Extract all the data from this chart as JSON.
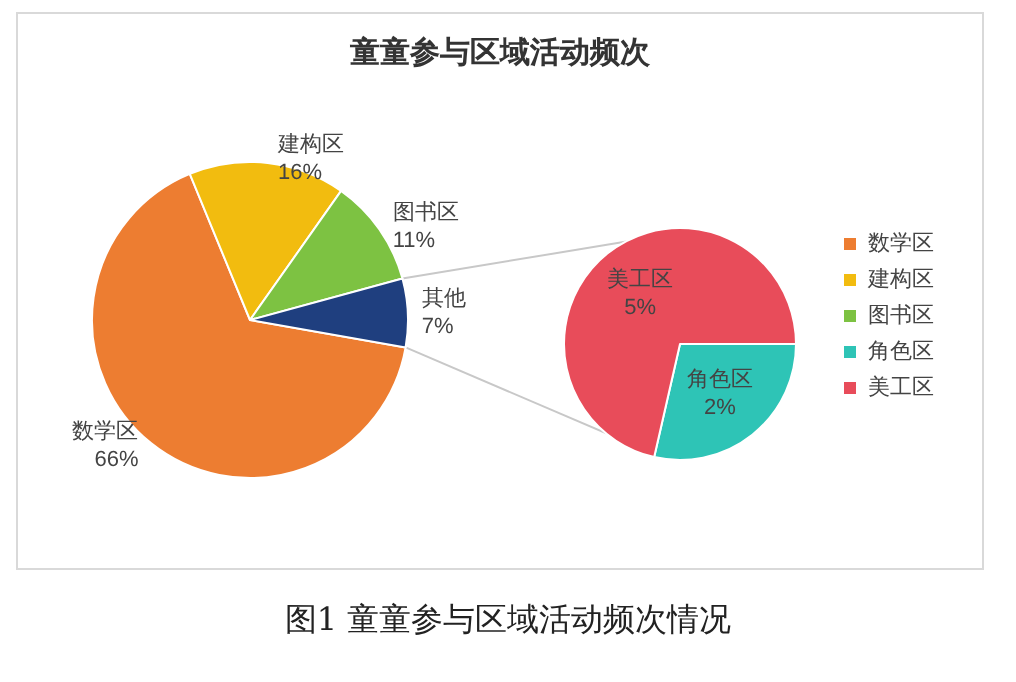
{
  "chart_data": [
    {
      "type": "pie",
      "title": "童童参与区域活动频次",
      "legend": "right",
      "annotations": [
        "图1 童童参与区域活动频次情况"
      ],
      "categories": [
        "数学区",
        "建构区",
        "图书区",
        "其他"
      ],
      "values": [
        66,
        16,
        11,
        7
      ],
      "value_labels": [
        "66%",
        "16%",
        "11%",
        "7%"
      ],
      "colors": [
        "#ed7d31",
        "#f2bc0f",
        "#7dc242",
        "#1f3f7f"
      ]
    },
    {
      "type": "pie",
      "legend": "right",
      "categories": [
        "角色区",
        "美工区"
      ],
      "values": [
        2,
        5
      ],
      "value_labels": [
        "2%",
        "5%"
      ],
      "colors": [
        "#2ec4b6",
        "#e84c5a"
      ]
    }
  ]
}
